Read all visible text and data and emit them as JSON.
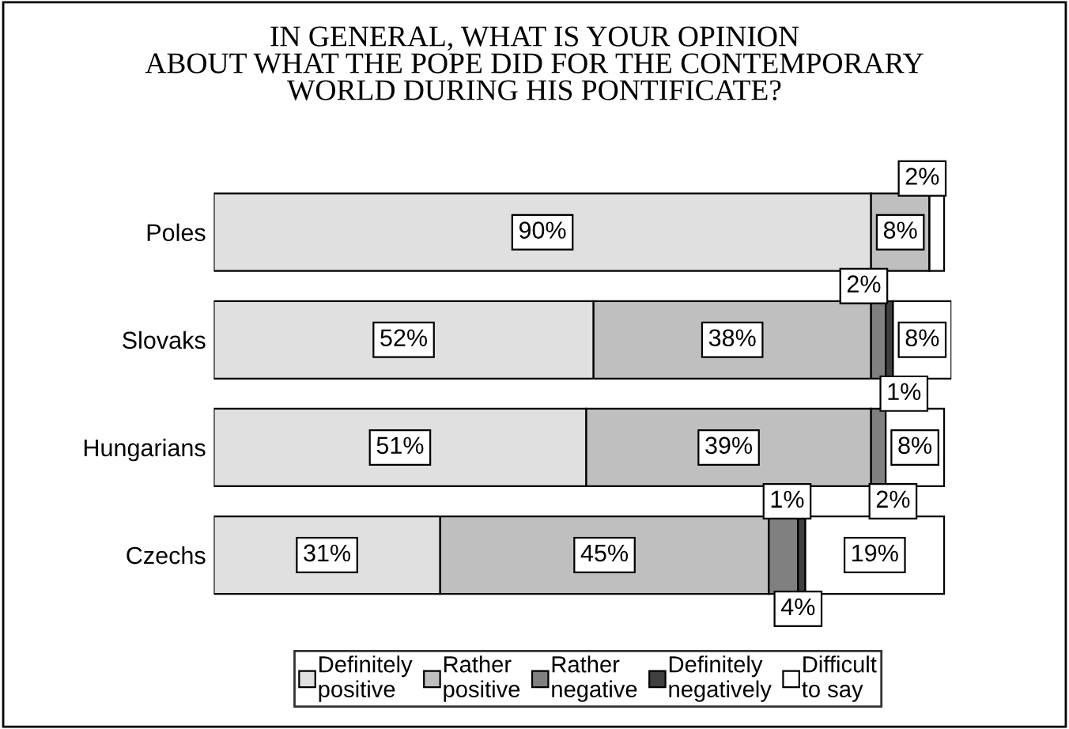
{
  "chart_data": {
    "type": "bar",
    "orientation": "horizontal",
    "stacked": true,
    "title": "IN GENERAL, WHAT IS YOUR OPINION\nABOUT WHAT THE POPE DID FOR THE CONTEMPORARY\nWORLD DURING HIS PONTIFICATE?",
    "categories": [
      "Poles",
      "Slovaks",
      "Hungarians",
      "Czechs"
    ],
    "series": [
      {
        "name": "Definitely\npositive",
        "color": "#e0e0e0",
        "values": [
          90,
          52,
          51,
          31
        ],
        "value_labels": [
          "90%",
          "52%",
          "51%",
          "31%"
        ]
      },
      {
        "name": "Rather\npositive",
        "color": "#bfbfbf",
        "values": [
          8,
          38,
          39,
          45
        ],
        "value_labels": [
          "8%",
          "38%",
          "39%",
          "45%"
        ]
      },
      {
        "name": "Rather\nnegative",
        "color": "#808080",
        "values": [
          0,
          2,
          2,
          4
        ],
        "value_labels": [
          null,
          "2%",
          "2%",
          "4%"
        ]
      },
      {
        "name": "Definitely\nnegatively",
        "color": "#404040",
        "values": [
          0,
          1,
          0,
          1
        ],
        "value_labels": [
          null,
          "1%",
          null,
          "1%"
        ]
      },
      {
        "name": "Difficult\nto say",
        "color": "#ffffff",
        "values": [
          2,
          8,
          8,
          19
        ],
        "value_labels": [
          "2%",
          "8%",
          "8%",
          "19%"
        ]
      }
    ],
    "legend": "bottom",
    "tick_labels": "y",
    "grid": false
  }
}
